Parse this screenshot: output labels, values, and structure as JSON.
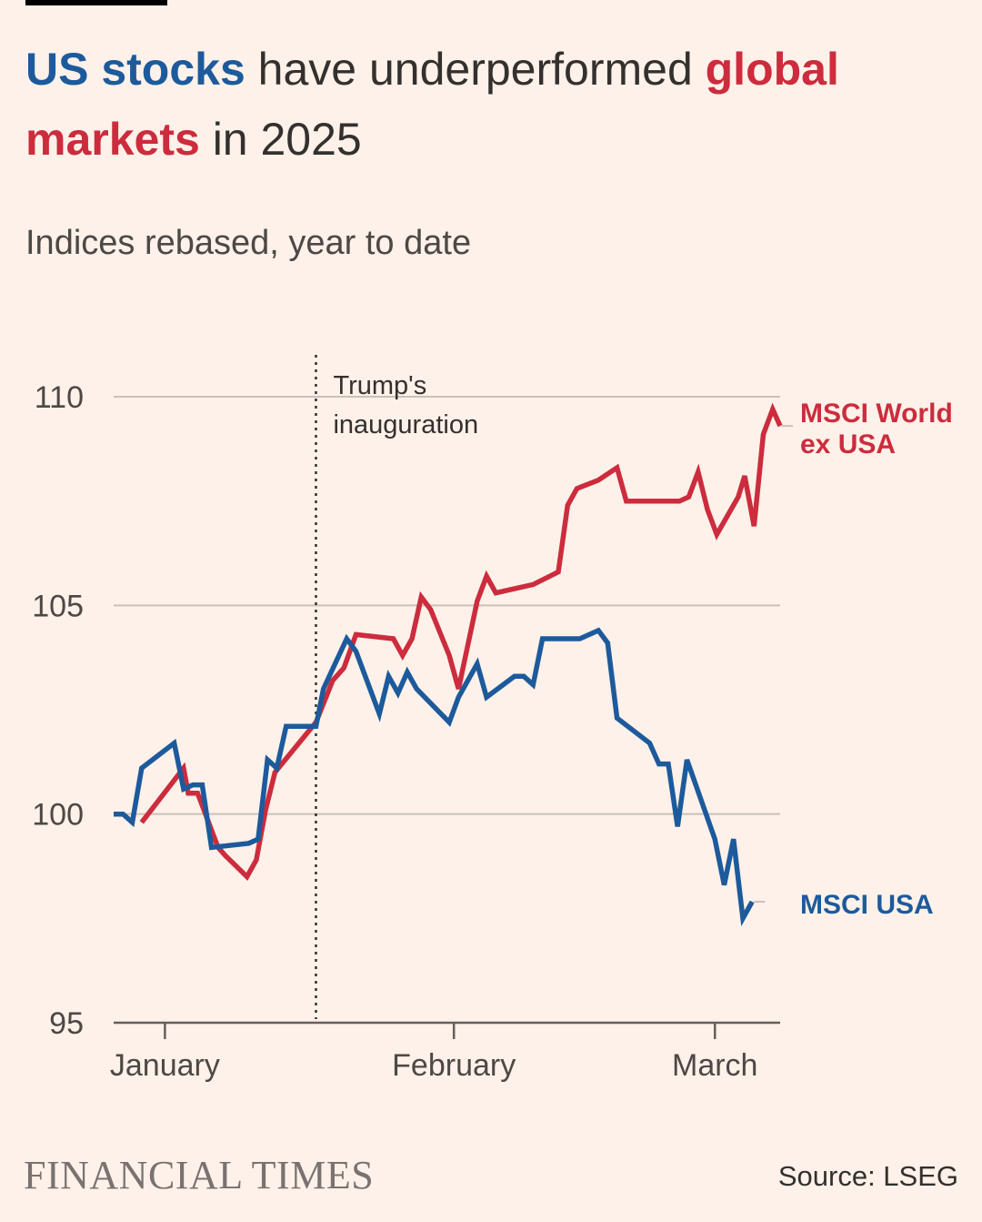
{
  "headline": {
    "part1": "US stocks",
    "part2": " have underperformed ",
    "part3": "global",
    "part4": "markets",
    "part5": " in 2025"
  },
  "subtitle": "Indices rebased, year to date",
  "footer": {
    "brand": "FINANCIAL TIMES",
    "source": "Source: LSEG"
  },
  "colors": {
    "us": "#1d5a9c",
    "world_ex_us": "#cc2c3d",
    "grid": "#c9c1bb",
    "text": "#33302e"
  },
  "chart_data": {
    "type": "line",
    "title": "",
    "xlabel": "",
    "ylabel": "",
    "ylim": [
      95,
      110
    ],
    "yticks": [
      95,
      100,
      105,
      110
    ],
    "xticks": [
      {
        "label": "January",
        "x": 5.5
      },
      {
        "label": "February",
        "x": 36.5
      },
      {
        "label": "March",
        "x": 64.5
      }
    ],
    "xlim": [
      0,
      71
    ],
    "annotations": [
      {
        "text_line1": "Trump's",
        "text_line2": "inauguration",
        "x": 21.7
      }
    ],
    "grid": true,
    "series": [
      {
        "name": "MSCI World ex USA",
        "label_line1": "MSCI World",
        "label_line2": "ex USA",
        "color": "#cc2c3d",
        "points": [
          [
            3,
            99.8
          ],
          [
            7.5,
            101.1
          ],
          [
            8,
            100.5
          ],
          [
            9,
            100.5
          ],
          [
            11.2,
            99.2
          ],
          [
            12,
            99.0
          ],
          [
            14.3,
            98.5
          ],
          [
            15.3,
            98.9
          ],
          [
            16.3,
            100.1
          ],
          [
            17.3,
            101.0
          ],
          [
            21.7,
            102.2
          ],
          [
            23.5,
            103.2
          ],
          [
            24.7,
            103.5
          ],
          [
            26,
            104.3
          ],
          [
            30,
            104.2
          ],
          [
            31,
            103.8
          ],
          [
            32,
            104.2
          ],
          [
            33,
            105.2
          ],
          [
            34,
            104.9
          ],
          [
            36,
            103.8
          ],
          [
            37,
            103.0
          ],
          [
            39,
            105.1
          ],
          [
            40,
            105.7
          ],
          [
            41,
            105.3
          ],
          [
            45,
            105.5
          ],
          [
            46.8,
            105.7
          ],
          [
            47.7,
            105.8
          ],
          [
            48.7,
            107.4
          ],
          [
            49.7,
            107.8
          ],
          [
            52,
            108.0
          ],
          [
            54,
            108.3
          ],
          [
            55,
            107.5
          ],
          [
            56.7,
            107.5
          ],
          [
            60.7,
            107.5
          ],
          [
            61.7,
            107.6
          ],
          [
            62.7,
            108.2
          ],
          [
            63.7,
            107.3
          ],
          [
            64.7,
            106.7
          ],
          [
            67,
            107.6
          ],
          [
            67.7,
            108.1
          ],
          [
            68.7,
            106.9
          ],
          [
            69.7,
            109.1
          ],
          [
            70.7,
            109.7
          ],
          [
            71.5,
            109.3
          ]
        ]
      },
      {
        "name": "MSCI USA",
        "label_line1": "MSCI USA",
        "color": "#1d5a9c",
        "points": [
          [
            0,
            100.0
          ],
          [
            1,
            100.0
          ],
          [
            2,
            99.8
          ],
          [
            3,
            101.1
          ],
          [
            6.5,
            101.7
          ],
          [
            7.5,
            100.6
          ],
          [
            8.5,
            100.7
          ],
          [
            9.5,
            100.7
          ],
          [
            10.5,
            99.2
          ],
          [
            14.5,
            99.3
          ],
          [
            15.5,
            99.4
          ],
          [
            16.5,
            101.3
          ],
          [
            17.5,
            101.1
          ],
          [
            18.5,
            102.1
          ],
          [
            21.7,
            102.1
          ],
          [
            22.5,
            103.0
          ],
          [
            25,
            104.2
          ],
          [
            26,
            103.9
          ],
          [
            28.5,
            102.4
          ],
          [
            29.5,
            103.3
          ],
          [
            30.5,
            102.9
          ],
          [
            31.5,
            103.4
          ],
          [
            32.5,
            103.0
          ],
          [
            36,
            102.2
          ],
          [
            37,
            102.8
          ],
          [
            39,
            103.6
          ],
          [
            40,
            102.8
          ],
          [
            43,
            103.3
          ],
          [
            44,
            103.3
          ],
          [
            45,
            103.1
          ],
          [
            46,
            104.2
          ],
          [
            50,
            104.2
          ],
          [
            52,
            104.4
          ],
          [
            53,
            104.1
          ],
          [
            54,
            102.3
          ],
          [
            57.5,
            101.7
          ],
          [
            58.5,
            101.2
          ],
          [
            59.5,
            101.2
          ],
          [
            60.5,
            99.7
          ],
          [
            61.5,
            101.3
          ],
          [
            64.5,
            99.4
          ],
          [
            65.5,
            98.3
          ],
          [
            66.5,
            99.4
          ],
          [
            67.5,
            97.5
          ],
          [
            68.5,
            97.9
          ]
        ]
      }
    ]
  }
}
